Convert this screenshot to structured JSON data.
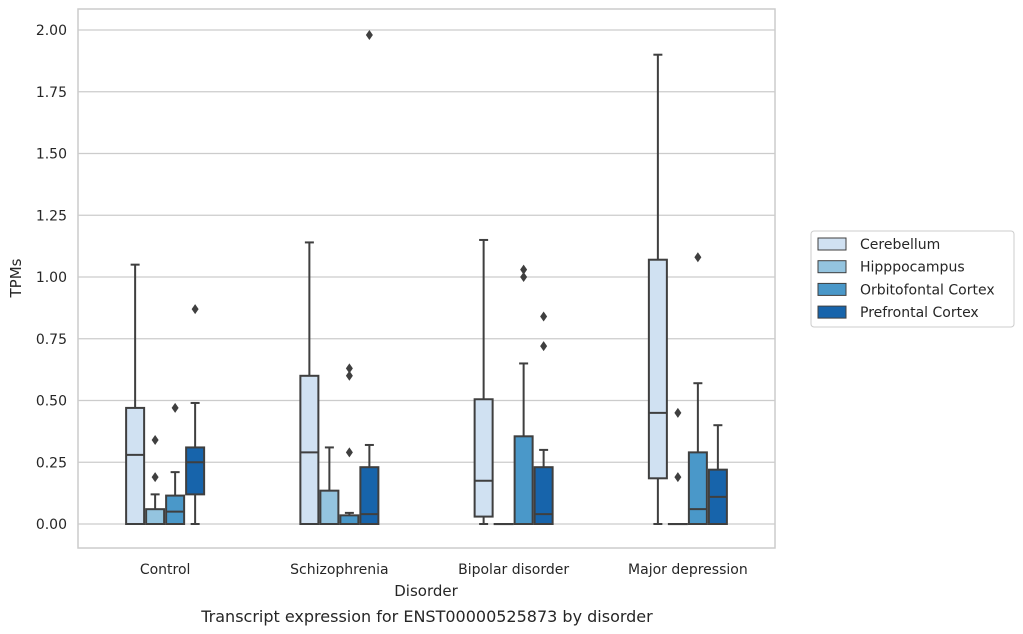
{
  "chart_data": {
    "type": "box",
    "caption": "Transcript expression for ENST00000525873 by disorder",
    "xlabel": "Disorder",
    "ylabel": "TPMs",
    "ylim": [
      -0.1,
      2.08
    ],
    "yticks": [
      "0.00",
      "0.25",
      "0.50",
      "0.75",
      "1.00",
      "1.25",
      "1.50",
      "1.75",
      "2.00"
    ],
    "grid": true,
    "legend_position": "right",
    "categories": [
      "Control",
      "Schizophrenia",
      "Bipolar disorder",
      "Major depression"
    ],
    "series": [
      {
        "name": "Cerebellum",
        "color": "#d0e1f2",
        "boxes": [
          {
            "whislo": 0.0,
            "q1": 0.0,
            "med": 0.28,
            "q3": 0.47,
            "whishi": 1.05,
            "fliers": []
          },
          {
            "whislo": 0.0,
            "q1": 0.0,
            "med": 0.29,
            "q3": 0.6,
            "whishi": 1.14,
            "fliers": []
          },
          {
            "whislo": 0.0,
            "q1": 0.03,
            "med": 0.175,
            "q3": 0.505,
            "whishi": 1.15,
            "fliers": []
          },
          {
            "whislo": 0.0,
            "q1": 0.185,
            "med": 0.45,
            "q3": 1.07,
            "whishi": 1.9,
            "fliers": []
          }
        ]
      },
      {
        "name": "Hipppocampus",
        "color": "#94c4df",
        "boxes": [
          {
            "whislo": 0.0,
            "q1": 0.0,
            "med": 0.0,
            "q3": 0.06,
            "whishi": 0.12,
            "fliers": [
              0.19,
              0.34
            ]
          },
          {
            "whislo": 0.0,
            "q1": 0.0,
            "med": 0.0,
            "q3": 0.135,
            "whishi": 0.31,
            "fliers": []
          },
          {
            "whislo": 0.0,
            "q1": 0.0,
            "med": 0.0,
            "q3": 0.0,
            "whishi": 0.0,
            "fliers": []
          },
          {
            "whislo": 0.0,
            "q1": 0.0,
            "med": 0.0,
            "q3": 0.0,
            "whishi": 0.0,
            "fliers": [
              0.19,
              0.45
            ]
          }
        ]
      },
      {
        "name": "Orbitofontal Cortex",
        "color": "#4a98c9",
        "boxes": [
          {
            "whislo": 0.0,
            "q1": 0.0,
            "med": 0.05,
            "q3": 0.115,
            "whishi": 0.21,
            "fliers": [
              0.47
            ]
          },
          {
            "whislo": 0.0,
            "q1": 0.0,
            "med": 0.0,
            "q3": 0.035,
            "whishi": 0.045,
            "fliers": [
              0.29,
              0.6,
              0.63
            ]
          },
          {
            "whislo": 0.0,
            "q1": 0.0,
            "med": 0.0,
            "q3": 0.355,
            "whishi": 0.65,
            "fliers": [
              1.0,
              1.03
            ]
          },
          {
            "whislo": 0.0,
            "q1": 0.0,
            "med": 0.06,
            "q3": 0.29,
            "whishi": 0.57,
            "fliers": [
              1.08
            ]
          }
        ]
      },
      {
        "name": "Prefrontal Cortex",
        "color": "#1764ab",
        "boxes": [
          {
            "whislo": 0.0,
            "q1": 0.12,
            "med": 0.25,
            "q3": 0.31,
            "whishi": 0.49,
            "fliers": [
              0.87
            ]
          },
          {
            "whislo": 0.0,
            "q1": 0.0,
            "med": 0.04,
            "q3": 0.23,
            "whishi": 0.32,
            "fliers": [
              1.98
            ]
          },
          {
            "whislo": 0.0,
            "q1": 0.0,
            "med": 0.04,
            "q3": 0.23,
            "whishi": 0.3,
            "fliers": [
              0.72,
              0.84
            ]
          },
          {
            "whislo": 0.0,
            "q1": 0.0,
            "med": 0.11,
            "q3": 0.22,
            "whishi": 0.4,
            "fliers": []
          }
        ]
      }
    ]
  }
}
